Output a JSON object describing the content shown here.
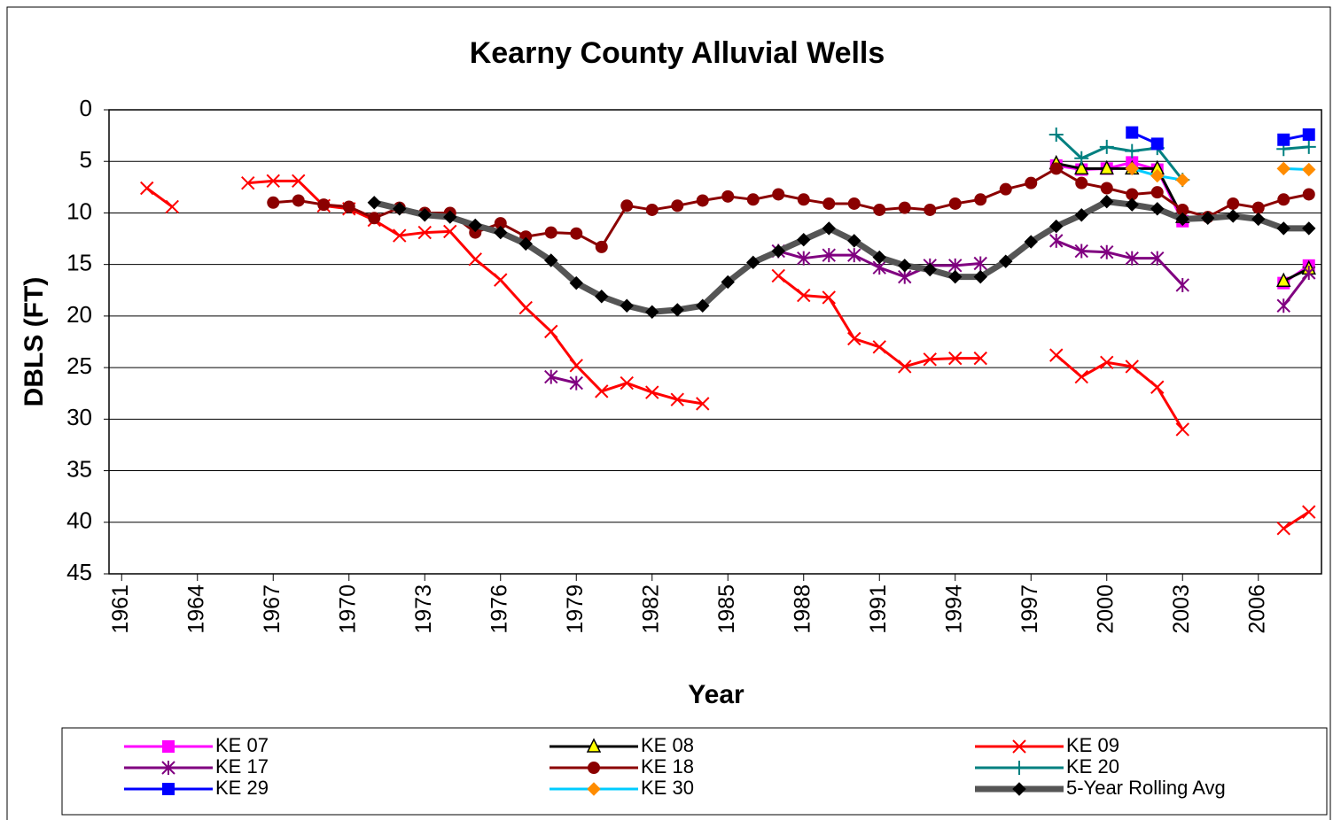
{
  "chart_data": {
    "type": "line",
    "title": "Kearny County Alluvial Wells",
    "x_label": "Year",
    "y_label": "DBLS (FT)",
    "xlim": [
      1960.5,
      2008.5
    ],
    "xticks": [
      1961,
      1964,
      1967,
      1970,
      1973,
      1976,
      1979,
      1982,
      1985,
      1988,
      1991,
      1994,
      1997,
      2000,
      2003,
      2006
    ],
    "ylim": [
      0,
      45
    ],
    "yticks": [
      0,
      5,
      10,
      15,
      20,
      25,
      30,
      35,
      40,
      45
    ],
    "y_inverted": true,
    "grid": true,
    "x": [
      1961,
      1962,
      1963,
      1964,
      1965,
      1966,
      1967,
      1968,
      1969,
      1970,
      1971,
      1972,
      1973,
      1974,
      1975,
      1976,
      1977,
      1978,
      1979,
      1980,
      1981,
      1982,
      1983,
      1984,
      1985,
      1986,
      1987,
      1988,
      1989,
      1990,
      1991,
      1992,
      1993,
      1994,
      1995,
      1996,
      1997,
      1998,
      1999,
      2000,
      2001,
      2002,
      2003,
      2004,
      2005,
      2006,
      2007,
      2008
    ],
    "series": [
      {
        "name": "KE 07",
        "color": "#ff00ff",
        "marker": "square",
        "marker_fill": "#ff00ff",
        "width": 3,
        "values": [
          null,
          null,
          null,
          null,
          null,
          null,
          null,
          null,
          null,
          null,
          null,
          null,
          null,
          null,
          null,
          null,
          null,
          null,
          null,
          null,
          null,
          null,
          null,
          null,
          null,
          null,
          null,
          null,
          null,
          null,
          null,
          null,
          null,
          null,
          null,
          null,
          null,
          5.4,
          5.8,
          5.7,
          5.1,
          5.8,
          10.8,
          null,
          null,
          null,
          16.8,
          15.1
        ]
      },
      {
        "name": "KE 08",
        "color": "#000000",
        "marker": "triangle",
        "marker_fill": "#ffff00",
        "width": 3,
        "values": [
          null,
          null,
          null,
          null,
          null,
          null,
          null,
          null,
          null,
          null,
          null,
          null,
          null,
          null,
          null,
          null,
          null,
          null,
          null,
          null,
          null,
          null,
          null,
          null,
          null,
          null,
          null,
          null,
          null,
          null,
          null,
          null,
          null,
          null,
          null,
          null,
          null,
          5.2,
          5.7,
          5.7,
          5.7,
          5.7,
          10.4,
          null,
          null,
          null,
          16.6,
          15.4
        ]
      },
      {
        "name": "KE 09",
        "color": "#ff0000",
        "marker": "x",
        "marker_fill": "#ff0000",
        "width": 3,
        "values": [
          null,
          7.6,
          9.4,
          null,
          null,
          7.1,
          6.9,
          6.9,
          9.3,
          9.6,
          10.7,
          12.2,
          11.9,
          11.8,
          14.5,
          16.5,
          19.2,
          21.5,
          24.8,
          27.3,
          26.5,
          27.4,
          28.1,
          28.5,
          null,
          null,
          16.1,
          18.0,
          18.2,
          22.2,
          23.0,
          24.9,
          24.2,
          24.1,
          24.1,
          null,
          null,
          23.8,
          25.9,
          24.5,
          24.9,
          26.9,
          31.0,
          null,
          null,
          null,
          40.6,
          39.0
        ]
      },
      {
        "name": "KE 17",
        "color": "#800080",
        "marker": "star",
        "marker_fill": "#800080",
        "width": 3,
        "values": [
          null,
          null,
          null,
          null,
          null,
          null,
          null,
          null,
          null,
          null,
          null,
          null,
          null,
          null,
          null,
          null,
          null,
          25.9,
          26.5,
          null,
          null,
          null,
          null,
          null,
          null,
          null,
          13.7,
          14.4,
          14.1,
          14.1,
          15.3,
          16.2,
          15.1,
          15.1,
          14.9,
          null,
          null,
          12.7,
          13.7,
          13.8,
          14.4,
          14.4,
          17.0,
          null,
          null,
          null,
          19.0,
          15.8
        ]
      },
      {
        "name": "KE 18",
        "color": "#8b0000",
        "marker": "circle",
        "marker_fill": "#8b0000",
        "width": 3,
        "values": [
          null,
          null,
          null,
          null,
          null,
          null,
          9.0,
          8.8,
          9.2,
          9.4,
          10.5,
          9.5,
          10.0,
          10.0,
          11.9,
          11.0,
          12.3,
          11.9,
          12.0,
          13.3,
          9.3,
          9.7,
          9.3,
          8.8,
          8.4,
          8.7,
          8.2,
          8.7,
          9.1,
          9.1,
          9.7,
          9.5,
          9.7,
          9.1,
          8.7,
          7.7,
          7.1,
          5.7,
          7.1,
          7.6,
          8.2,
          8.0,
          9.7,
          10.4,
          9.1,
          9.5,
          8.7,
          8.2
        ]
      },
      {
        "name": "KE 20",
        "color": "#008080",
        "marker": "plus",
        "marker_fill": "#008080",
        "width": 3,
        "values": [
          null,
          null,
          null,
          null,
          null,
          null,
          null,
          null,
          null,
          null,
          null,
          null,
          null,
          null,
          null,
          null,
          null,
          null,
          null,
          null,
          null,
          null,
          null,
          null,
          null,
          null,
          null,
          null,
          null,
          null,
          null,
          null,
          null,
          null,
          null,
          null,
          null,
          2.4,
          4.7,
          3.6,
          4.0,
          3.7,
          6.8,
          null,
          null,
          null,
          3.8,
          3.6
        ]
      },
      {
        "name": "KE 29",
        "color": "#0000ff",
        "marker": "square",
        "marker_fill": "#0000ff",
        "width": 3,
        "values": [
          null,
          null,
          null,
          null,
          null,
          null,
          null,
          null,
          null,
          null,
          null,
          null,
          null,
          null,
          null,
          null,
          null,
          null,
          null,
          null,
          null,
          null,
          null,
          null,
          null,
          null,
          null,
          null,
          null,
          null,
          null,
          null,
          null,
          null,
          null,
          null,
          null,
          null,
          null,
          null,
          2.2,
          3.3,
          null,
          null,
          null,
          null,
          2.9,
          2.4
        ]
      },
      {
        "name": "KE 30",
        "color": "#00ccff",
        "marker": "diamond",
        "marker_fill": "#ff8c00",
        "width": 3,
        "values": [
          null,
          null,
          null,
          null,
          null,
          null,
          null,
          null,
          null,
          null,
          null,
          null,
          null,
          null,
          null,
          null,
          null,
          null,
          null,
          null,
          null,
          null,
          null,
          null,
          null,
          null,
          null,
          null,
          null,
          null,
          null,
          null,
          null,
          null,
          null,
          null,
          null,
          null,
          null,
          null,
          5.7,
          6.4,
          6.8,
          null,
          null,
          null,
          5.7,
          5.8
        ]
      },
      {
        "name": "5-Year Rolling Avg",
        "color": "#555555",
        "marker": "diamond",
        "marker_fill": "#000000",
        "width": 7,
        "values": [
          null,
          null,
          null,
          null,
          null,
          null,
          null,
          null,
          null,
          null,
          9.0,
          9.6,
          10.2,
          10.4,
          11.2,
          11.9,
          13.0,
          14.6,
          16.8,
          18.1,
          19.0,
          19.6,
          19.4,
          19.0,
          16.7,
          14.8,
          13.7,
          12.6,
          11.5,
          12.7,
          14.3,
          15.1,
          15.5,
          16.2,
          16.2,
          14.7,
          12.8,
          11.3,
          10.2,
          8.9,
          9.2,
          9.6,
          10.6,
          10.5,
          10.3,
          10.6,
          11.5,
          11.5
        ]
      }
    ]
  }
}
